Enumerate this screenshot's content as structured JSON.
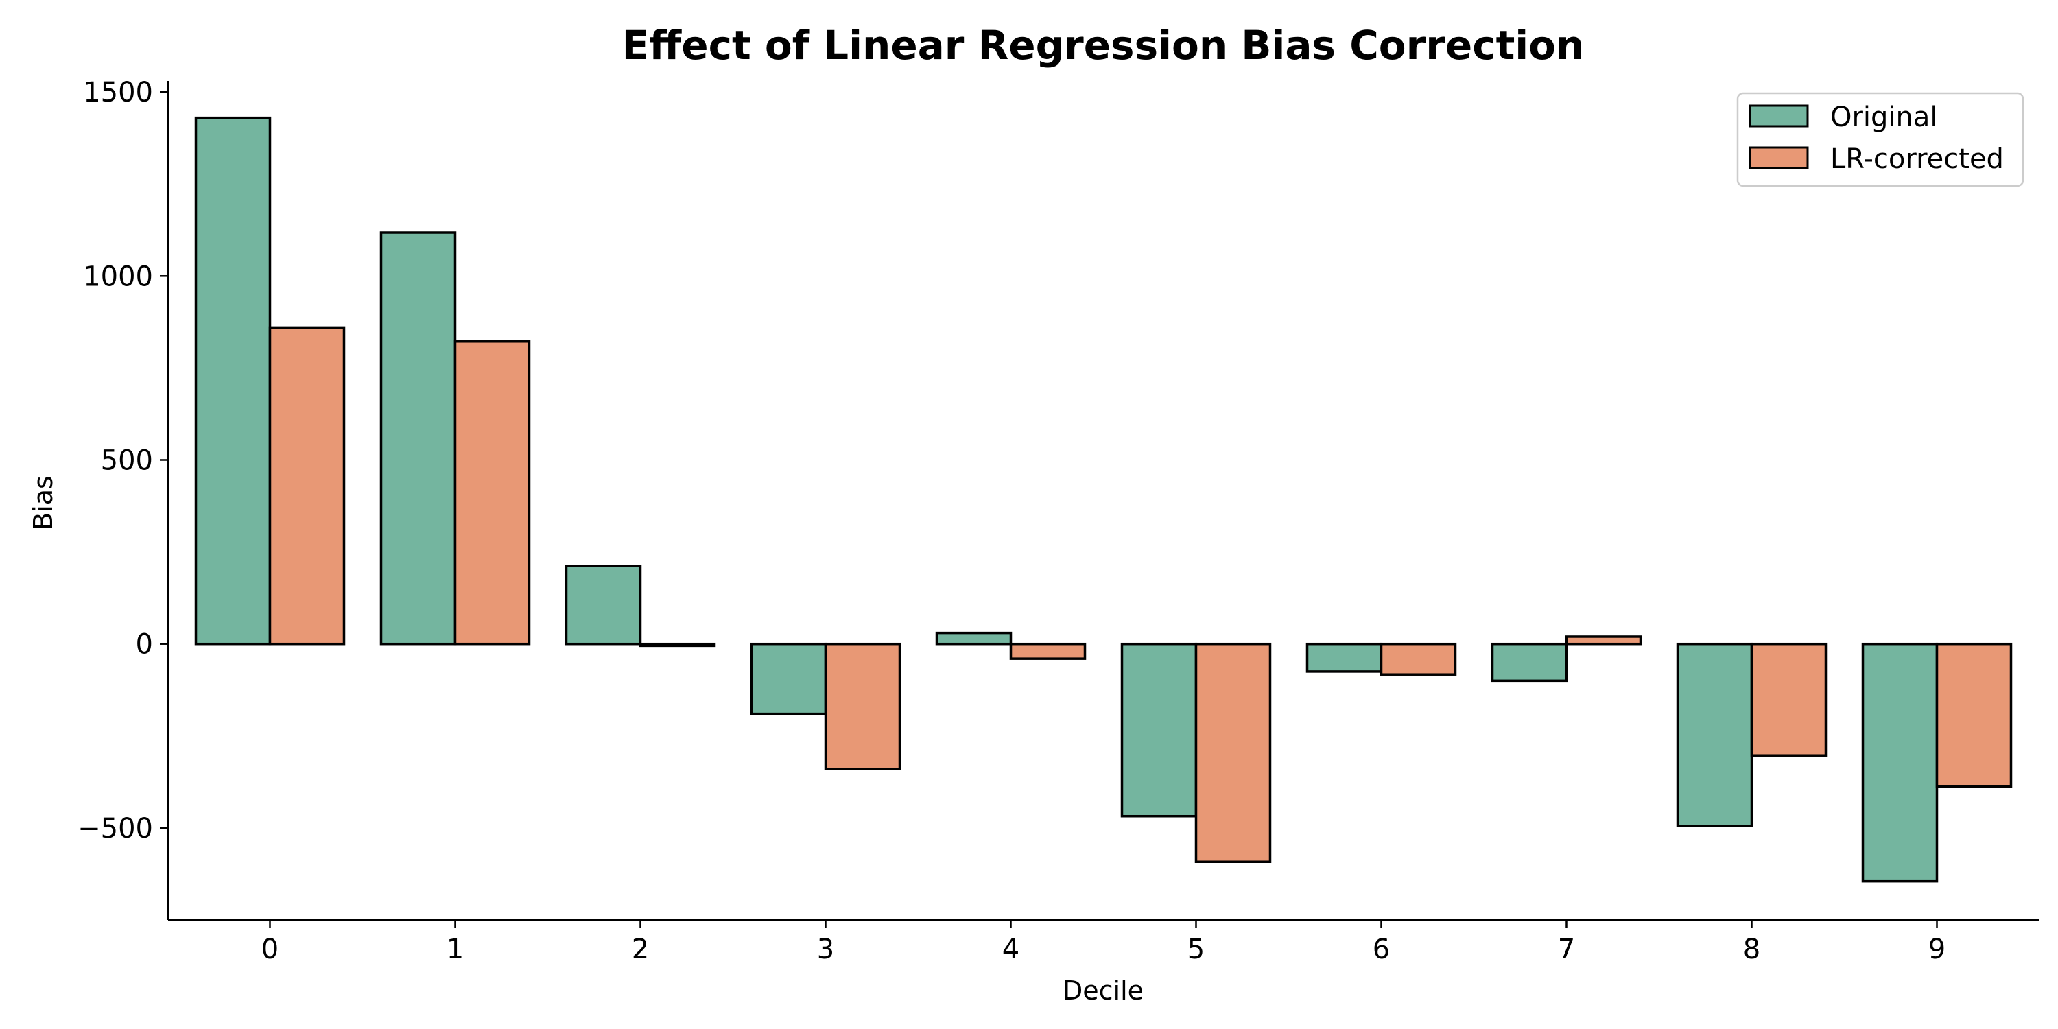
{
  "chart_data": {
    "type": "bar",
    "title": "Effect of Linear Regression Bias Correction",
    "xlabel": "Decile",
    "ylabel": "Bias",
    "categories": [
      "0",
      "1",
      "2",
      "3",
      "4",
      "5",
      "6",
      "7",
      "8",
      "9"
    ],
    "series": [
      {
        "name": "Original",
        "color": "#74b59f",
        "values": [
          1430,
          1118,
          212,
          -190,
          30,
          -468,
          -75,
          -100,
          -495,
          -645
        ]
      },
      {
        "name": "LR-corrected",
        "color": "#e89875",
        "values": [
          860,
          822,
          -5,
          -340,
          -40,
          -592,
          -83,
          20,
          -303,
          -387
        ]
      }
    ],
    "ylim": [
      -750,
      1530
    ],
    "yticks": [
      {
        "value": 1500,
        "label": "1500"
      },
      {
        "value": 1000,
        "label": "1000"
      },
      {
        "value": 500,
        "label": "500"
      },
      {
        "value": 0,
        "label": "0"
      },
      {
        "value": -500,
        "label": "−500"
      }
    ],
    "grid": false,
    "legend_position": "top-right",
    "edge_color": "#000000"
  }
}
